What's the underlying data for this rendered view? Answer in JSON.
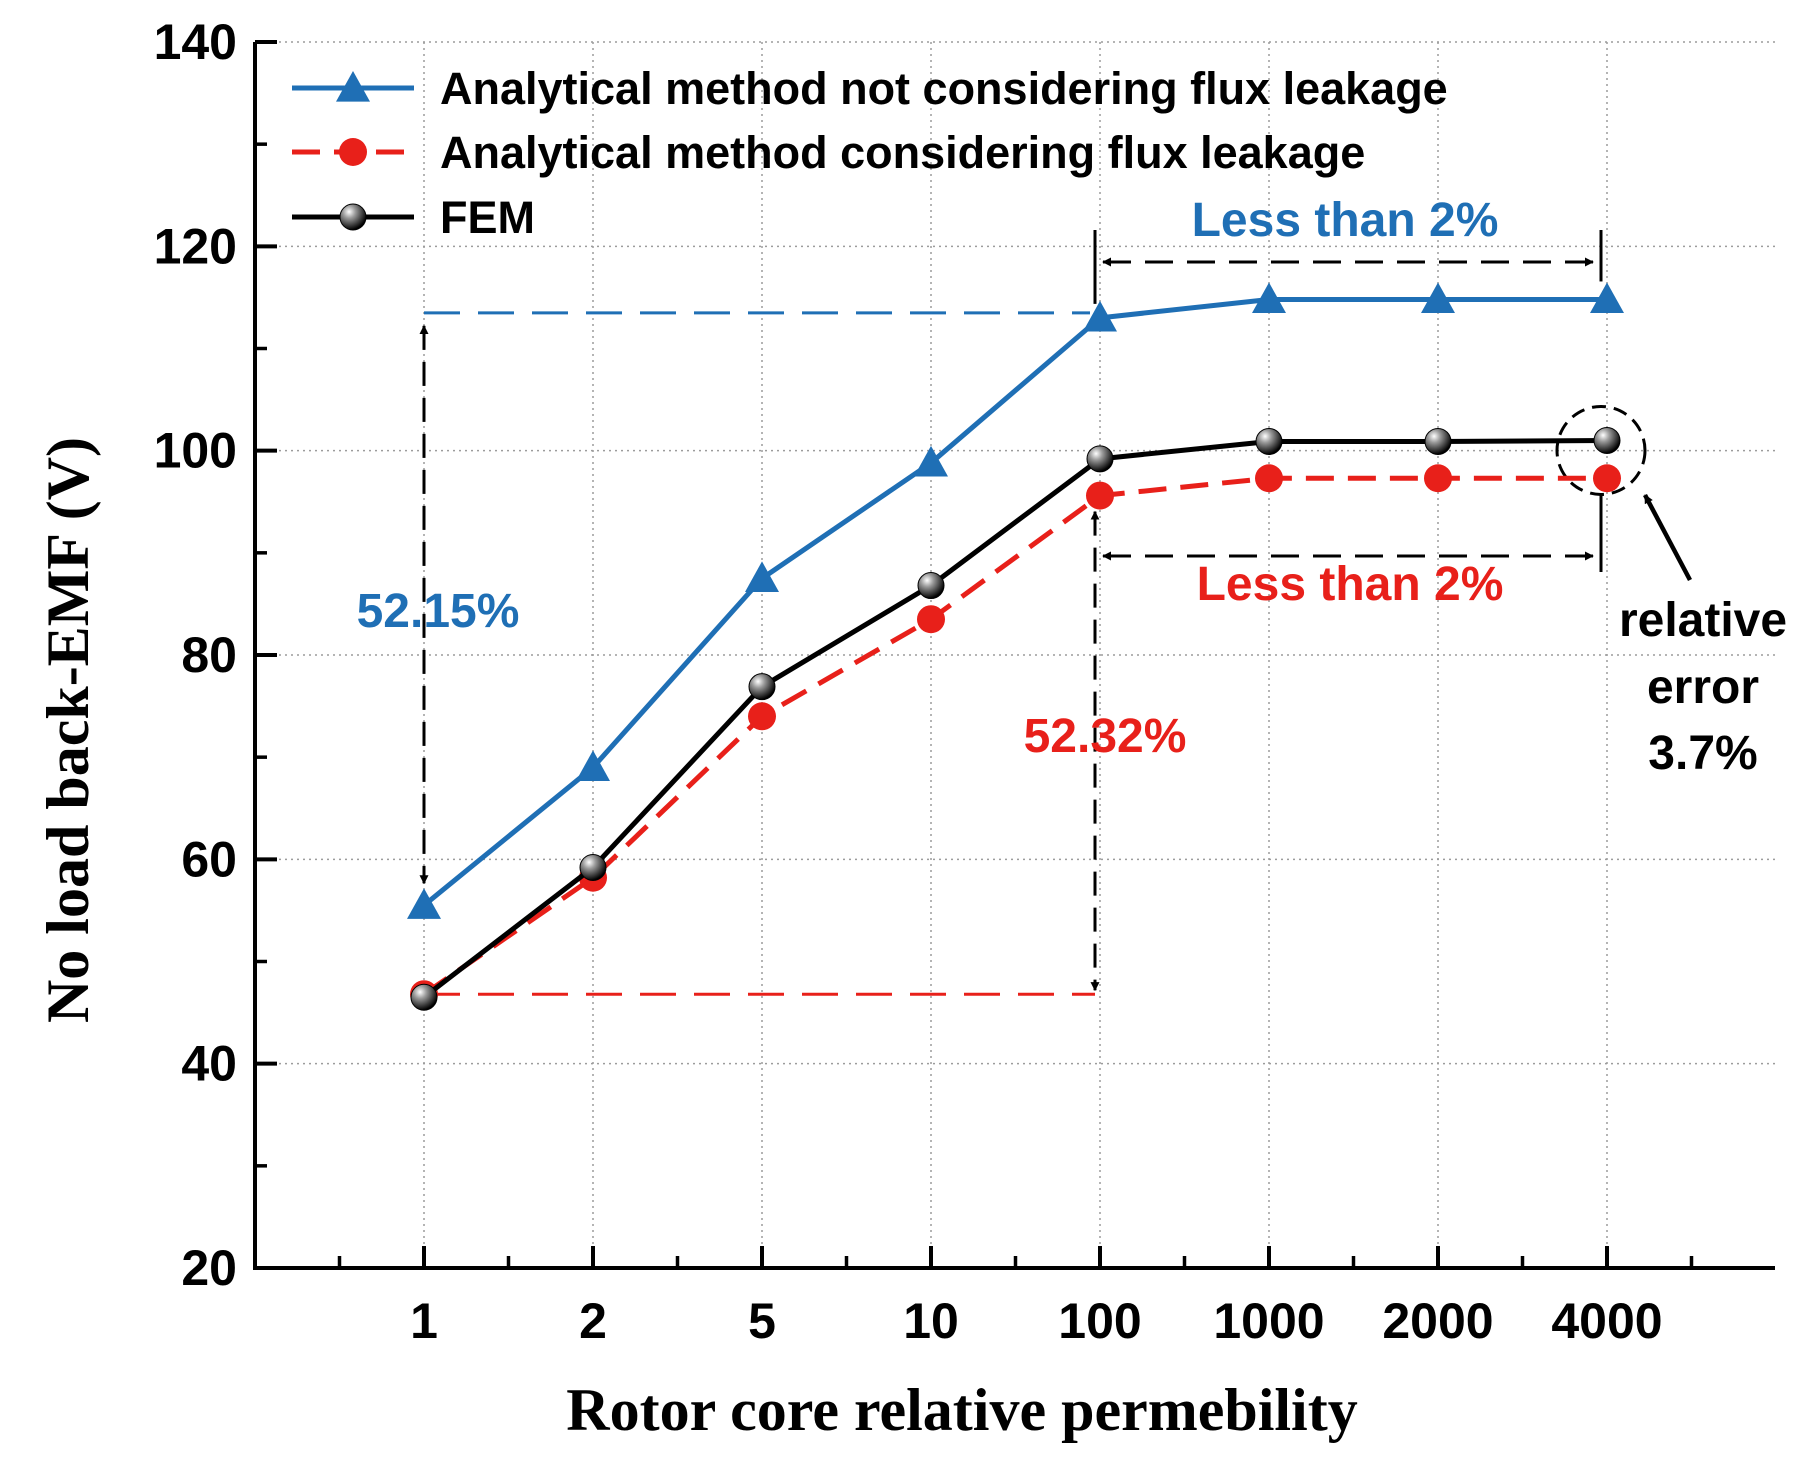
{
  "chart_data": {
    "type": "line",
    "title": "",
    "xlabel": "Rotor core relative permebility",
    "ylabel": "No load back-EMF  (V)",
    "categories": [
      "1",
      "2",
      "5",
      "10",
      "100",
      "1000",
      "2000",
      "4000"
    ],
    "ylim": [
      20,
      140
    ],
    "yticks": [
      20,
      40,
      60,
      80,
      100,
      120,
      140
    ],
    "grid": true,
    "legend_position": "top-left",
    "series": [
      {
        "name": "Analytical method not considering flux leakage",
        "values": [
          55.5,
          69.0,
          87.5,
          98.8,
          113.0,
          114.8,
          114.8,
          114.8
        ],
        "color": "#1f6fb5",
        "line_style": "solid",
        "marker": "triangle"
      },
      {
        "name": "Analytical method considering flux leakage",
        "values": [
          46.8,
          58.2,
          74.0,
          83.5,
          95.6,
          97.3,
          97.3,
          97.3
        ],
        "color": "#e8201a",
        "line_style": "dashed",
        "marker": "circle"
      },
      {
        "name": "FEM",
        "values": [
          46.5,
          59.2,
          76.9,
          86.8,
          99.2,
          100.9,
          100.9,
          101.0
        ],
        "color": "#000000",
        "line_style": "solid",
        "marker": "sphere"
      }
    ],
    "annotations": [
      {
        "text": "52.15%",
        "color": "#1f6fb5"
      },
      {
        "text": "52.32%",
        "color": "#e8201a"
      },
      {
        "text": "Less than 2%",
        "color": "#1f6fb5"
      },
      {
        "text": "Less than 2%",
        "color": "#e8201a"
      },
      {
        "lines": [
          "relative",
          "error",
          "3.7%"
        ],
        "color": "#000000"
      }
    ]
  }
}
